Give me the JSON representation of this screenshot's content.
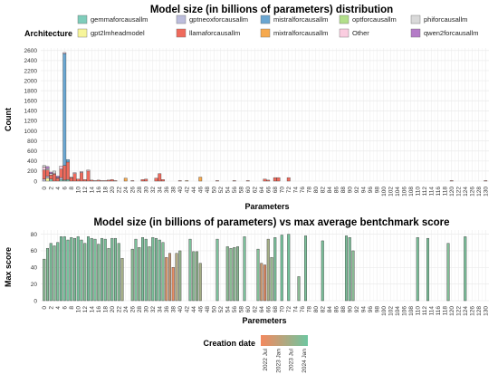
{
  "colors": {
    "gemmaforcausallm": "#7fcdbb",
    "gpt2lmheadmodel": "#f7f59a",
    "gptneoxforcausallm": "#bcbddc",
    "llamaforcausallm": "#ef6a5c",
    "mistralforcausallm": "#6aa6d1",
    "mixtralforcausallm": "#f6a94e",
    "optforcausallm": "#b2df8a",
    "Other": "#fbcde0",
    "phiforcausallm": "#d9d9d9",
    "qwen2forcausallm": "#b47cc7",
    "grid": "#ebebeb",
    "gradient_start": "#f4895f",
    "gradient_end": "#6ec6a0"
  },
  "chart_data": [
    {
      "type": "bar",
      "stacked": true,
      "title": "Model size (in billions of parameters) distribution",
      "xlabel": "Parameters",
      "ylabel": "Count",
      "legend_title": "Architecture",
      "legend_position": "top",
      "grid": true,
      "xlim": [
        -1,
        131
      ],
      "ylim": [
        0,
        2650
      ],
      "xticks": [
        0,
        2,
        4,
        6,
        8,
        10,
        12,
        14,
        16,
        18,
        20,
        22,
        24,
        26,
        28,
        30,
        32,
        34,
        36,
        38,
        40,
        42,
        44,
        46,
        48,
        50,
        52,
        54,
        56,
        58,
        60,
        62,
        64,
        66,
        68,
        70,
        72,
        74,
        76,
        78,
        80,
        82,
        84,
        86,
        88,
        90,
        92,
        94,
        96,
        98,
        100,
        102,
        104,
        106,
        108,
        110,
        112,
        114,
        116,
        118,
        120,
        122,
        124,
        126,
        128,
        130
      ],
      "yticks": [
        0,
        200,
        400,
        600,
        800,
        1000,
        1200,
        1400,
        1600,
        1800,
        2000,
        2200,
        2400,
        2600
      ],
      "series_order": [
        "gemmaforcausallm",
        "gpt2lmheadmodel",
        "gptneoxforcausallm",
        "llamaforcausallm",
        "mistralforcausallm",
        "mixtralforcausallm",
        "optforcausallm",
        "Other",
        "phiforcausallm",
        "qwen2forcausallm"
      ],
      "legend_rows": [
        [
          "gemmaforcausallm",
          "gptneoxforcausallm",
          "mistralforcausallm",
          "optforcausallm",
          "phiforcausallm"
        ],
        [
          "gpt2lmheadmodel",
          "llamaforcausallm",
          "mixtralforcausallm",
          "Other",
          "qwen2forcausallm"
        ]
      ],
      "bars": [
        {
          "x": 0,
          "values": {
            "llamaforcausallm": 180,
            "Other": 60,
            "gptneoxforcausallm": 40,
            "phiforcausallm": 30
          }
        },
        {
          "x": 1,
          "values": {
            "llamaforcausallm": 120,
            "gpt2lmheadmodel": 60,
            "gptneoxforcausallm": 40,
            "qwen2forcausallm": 40,
            "phiforcausallm": 30
          }
        },
        {
          "x": 2,
          "values": {
            "llamaforcausallm": 80,
            "gemmaforcausallm": 40,
            "qwen2forcausallm": 30,
            "phiforcausallm": 30
          }
        },
        {
          "x": 3,
          "values": {
            "llamaforcausallm": 140,
            "phiforcausallm": 40,
            "Other": 20
          }
        },
        {
          "x": 4,
          "values": {
            "llamaforcausallm": 60,
            "qwen2forcausallm": 30,
            "Other": 10
          }
        },
        {
          "x": 5,
          "values": {
            "llamaforcausallm": 170,
            "Other": 60,
            "gptneoxforcausallm": 40,
            "gemmaforcausallm": 30
          }
        },
        {
          "x": 6,
          "values": {
            "mistralforcausallm": 2230,
            "llamaforcausallm": 290,
            "gemmaforcausallm": 20,
            "Other": 20
          }
        },
        {
          "x": 7,
          "values": {
            "llamaforcausallm": 350,
            "mistralforcausallm": 50,
            "gemmaforcausallm": 30
          }
        },
        {
          "x": 8,
          "values": {
            "llamaforcausallm": 70,
            "Other": 10
          }
        },
        {
          "x": 9,
          "values": {
            "llamaforcausallm": 150,
            "Other": 20
          }
        },
        {
          "x": 10,
          "values": {
            "llamaforcausallm": 40
          }
        },
        {
          "x": 11,
          "values": {
            "llamaforcausallm": 170,
            "Other": 20
          }
        },
        {
          "x": 12,
          "values": {
            "llamaforcausallm": 30
          }
        },
        {
          "x": 13,
          "values": {
            "llamaforcausallm": 200,
            "Other": 20
          }
        },
        {
          "x": 14,
          "values": {
            "llamaforcausallm": 20
          }
        },
        {
          "x": 15,
          "values": {
            "llamaforcausallm": 10
          }
        },
        {
          "x": 16,
          "values": {
            "llamaforcausallm": 20
          }
        },
        {
          "x": 17,
          "values": {
            "llamaforcausallm": 10
          }
        },
        {
          "x": 18,
          "values": {
            "llamaforcausallm": 10
          }
        },
        {
          "x": 19,
          "values": {
            "llamaforcausallm": 20
          }
        },
        {
          "x": 20,
          "values": {
            "llamaforcausallm": 30
          }
        },
        {
          "x": 21,
          "values": {
            "llamaforcausallm": 10
          }
        },
        {
          "x": 24,
          "values": {
            "mixtralforcausallm": 60
          }
        },
        {
          "x": 26,
          "values": {
            "llamaforcausallm": 10
          }
        },
        {
          "x": 29,
          "values": {
            "llamaforcausallm": 30
          }
        },
        {
          "x": 30,
          "values": {
            "llamaforcausallm": 40
          }
        },
        {
          "x": 33,
          "values": {
            "llamaforcausallm": 60
          }
        },
        {
          "x": 34,
          "values": {
            "llamaforcausallm": 150
          }
        },
        {
          "x": 35,
          "values": {
            "llamaforcausallm": 30
          }
        },
        {
          "x": 40,
          "values": {
            "llamaforcausallm": 10
          }
        },
        {
          "x": 42,
          "values": {
            "mixtralforcausallm": 10
          }
        },
        {
          "x": 46,
          "values": {
            "mixtralforcausallm": 80
          }
        },
        {
          "x": 51,
          "values": {
            "llamaforcausallm": 10
          }
        },
        {
          "x": 56,
          "values": {
            "llamaforcausallm": 10
          }
        },
        {
          "x": 60,
          "values": {
            "llamaforcausallm": 10
          }
        },
        {
          "x": 65,
          "values": {
            "llamaforcausallm": 40
          }
        },
        {
          "x": 66,
          "values": {
            "llamaforcausallm": 20
          }
        },
        {
          "x": 68,
          "values": {
            "llamaforcausallm": 70
          }
        },
        {
          "x": 69,
          "values": {
            "llamaforcausallm": 70
          }
        },
        {
          "x": 72,
          "values": {
            "llamaforcausallm": 70
          }
        },
        {
          "x": 120,
          "values": {
            "llamaforcausallm": 10
          }
        },
        {
          "x": 130,
          "values": {
            "llamaforcausallm": 10
          }
        }
      ]
    },
    {
      "type": "bar",
      "title": "Model size (in billions of parameters) vs max average bentchmark score",
      "xlabel": "Paremeters",
      "ylabel": "Max score",
      "legend_title": "Creation date",
      "legend_position": "bottom",
      "legend_labels": [
        "2022 Jul",
        "2023 Jan",
        "2023 Jul",
        "2024 Jan"
      ],
      "grid": true,
      "xlim": [
        -1,
        131
      ],
      "ylim": [
        0,
        85
      ],
      "xticks": [
        0,
        2,
        4,
        6,
        8,
        10,
        12,
        14,
        16,
        18,
        20,
        22,
        24,
        26,
        28,
        30,
        32,
        34,
        36,
        38,
        40,
        42,
        44,
        46,
        48,
        50,
        52,
        54,
        56,
        58,
        60,
        62,
        64,
        66,
        68,
        70,
        72,
        74,
        76,
        78,
        80,
        82,
        84,
        86,
        88,
        90,
        92,
        94,
        96,
        98,
        100,
        102,
        104,
        106,
        108,
        110,
        112,
        114,
        116,
        118,
        120,
        122,
        124,
        126,
        128,
        130
      ],
      "yticks": [
        0,
        20,
        40,
        60,
        80
      ],
      "bars": [
        {
          "x": 0,
          "value": 50,
          "date": 0.8
        },
        {
          "x": 1,
          "value": 63,
          "date": 0.85
        },
        {
          "x": 2,
          "value": 69,
          "date": 0.9
        },
        {
          "x": 3,
          "value": 66,
          "date": 0.85
        },
        {
          "x": 4,
          "value": 70,
          "date": 0.9
        },
        {
          "x": 5,
          "value": 77,
          "date": 0.95
        },
        {
          "x": 6,
          "value": 77,
          "date": 0.95
        },
        {
          "x": 7,
          "value": 73,
          "date": 0.95
        },
        {
          "x": 8,
          "value": 76,
          "date": 0.9
        },
        {
          "x": 9,
          "value": 75,
          "date": 0.9
        },
        {
          "x": 10,
          "value": 77,
          "date": 0.95
        },
        {
          "x": 11,
          "value": 73,
          "date": 0.9
        },
        {
          "x": 12,
          "value": 69,
          "date": 0.85
        },
        {
          "x": 13,
          "value": 77,
          "date": 0.95
        },
        {
          "x": 14,
          "value": 75,
          "date": 0.9
        },
        {
          "x": 15,
          "value": 74,
          "date": 0.9
        },
        {
          "x": 16,
          "value": 68,
          "date": 0.85
        },
        {
          "x": 17,
          "value": 75,
          "date": 0.9
        },
        {
          "x": 18,
          "value": 74,
          "date": 0.9
        },
        {
          "x": 19,
          "value": 63,
          "date": 0.8
        },
        {
          "x": 20,
          "value": 75,
          "date": 0.9
        },
        {
          "x": 21,
          "value": 75,
          "date": 0.9
        },
        {
          "x": 22,
          "value": 69,
          "date": 0.85
        },
        {
          "x": 23,
          "value": 51,
          "date": 0.6
        },
        {
          "x": 26,
          "value": 62,
          "date": 0.8
        },
        {
          "x": 27,
          "value": 74,
          "date": 0.9
        },
        {
          "x": 28,
          "value": 64,
          "date": 0.8
        },
        {
          "x": 29,
          "value": 76,
          "date": 0.9
        },
        {
          "x": 30,
          "value": 74,
          "date": 0.9
        },
        {
          "x": 31,
          "value": 65,
          "date": 0.8
        },
        {
          "x": 32,
          "value": 76,
          "date": 0.9
        },
        {
          "x": 33,
          "value": 75,
          "date": 0.9
        },
        {
          "x": 34,
          "value": 73,
          "date": 0.9
        },
        {
          "x": 35,
          "value": 70,
          "date": 0.85
        },
        {
          "x": 36,
          "value": 52,
          "date": 0.2
        },
        {
          "x": 37,
          "value": 57,
          "date": 0.3
        },
        {
          "x": 38,
          "value": 40,
          "date": 0.1
        },
        {
          "x": 39,
          "value": 57,
          "date": 0.5
        },
        {
          "x": 40,
          "value": 60,
          "date": 0.7
        },
        {
          "x": 43,
          "value": 74,
          "date": 0.9
        },
        {
          "x": 44,
          "value": 59,
          "date": 0.8
        },
        {
          "x": 45,
          "value": 59,
          "date": 0.75
        },
        {
          "x": 46,
          "value": 45,
          "date": 0.6
        },
        {
          "x": 51,
          "value": 74,
          "date": 0.9
        },
        {
          "x": 54,
          "value": 65,
          "date": 0.8
        },
        {
          "x": 55,
          "value": 63,
          "date": 0.8
        },
        {
          "x": 56,
          "value": 64,
          "date": 0.8
        },
        {
          "x": 57,
          "value": 65,
          "date": 0.8
        },
        {
          "x": 59,
          "value": 77,
          "date": 0.9
        },
        {
          "x": 63,
          "value": 62,
          "date": 0.85
        },
        {
          "x": 64,
          "value": 45,
          "date": 0.3
        },
        {
          "x": 65,
          "value": 43,
          "date": 0.1
        },
        {
          "x": 66,
          "value": 74,
          "date": 0.6
        },
        {
          "x": 67,
          "value": 52,
          "date": 0.7
        },
        {
          "x": 68,
          "value": 76,
          "date": 0.9
        },
        {
          "x": 70,
          "value": 79,
          "date": 0.95
        },
        {
          "x": 72,
          "value": 80,
          "date": 0.95
        },
        {
          "x": 75,
          "value": 29,
          "date": 0.8
        },
        {
          "x": 77,
          "value": 78,
          "date": 0.9
        },
        {
          "x": 82,
          "value": 72,
          "date": 0.9
        },
        {
          "x": 89,
          "value": 78,
          "date": 0.9
        },
        {
          "x": 90,
          "value": 76,
          "date": 0.9
        },
        {
          "x": 91,
          "value": 60,
          "date": 0.8
        },
        {
          "x": 110,
          "value": 76,
          "date": 0.9
        },
        {
          "x": 113,
          "value": 75,
          "date": 0.9
        },
        {
          "x": 119,
          "value": 69,
          "date": 0.85
        },
        {
          "x": 124,
          "value": 77,
          "date": 0.9
        }
      ]
    }
  ]
}
